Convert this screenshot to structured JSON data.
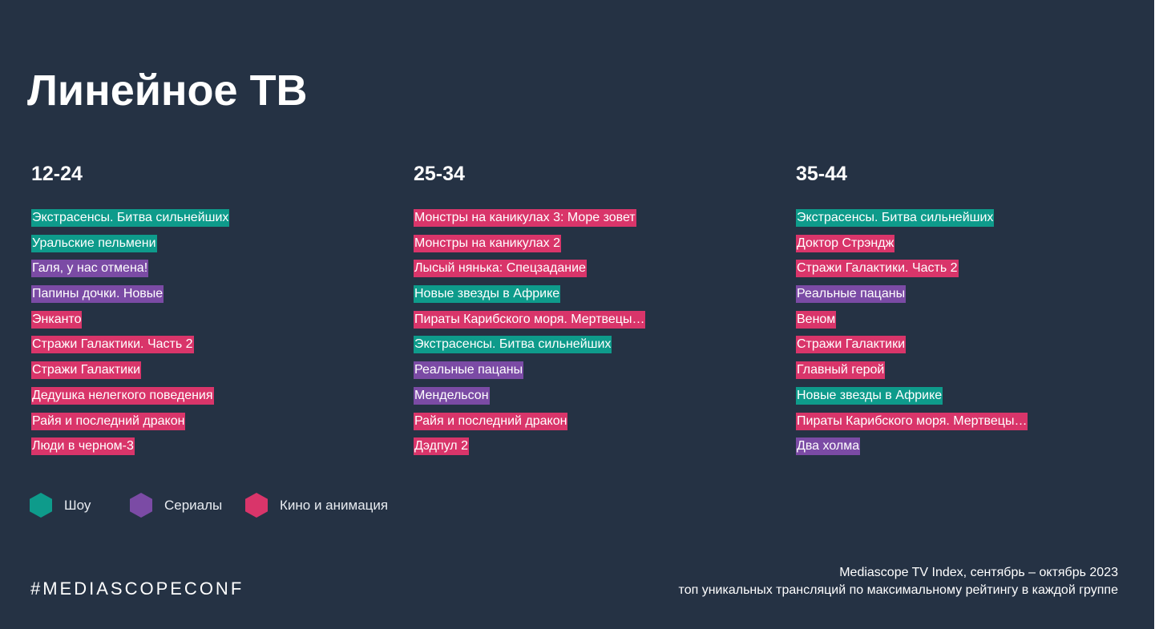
{
  "title": "Линейное ТВ",
  "colors": {
    "background": "#253244",
    "show": "#0e9b8b",
    "series": "#7b4ba5",
    "movie": "#d9356a"
  },
  "legend": [
    {
      "category": "show",
      "label": "Шоу",
      "icon": "teal-hexagon-icon"
    },
    {
      "category": "series",
      "label": "Сериалы",
      "icon": "purple-hexagon-icon"
    },
    {
      "category": "movie",
      "label": "Кино и анимация",
      "icon": "pink-hexagon-icon"
    }
  ],
  "groups": [
    {
      "age": "12-24",
      "items": [
        {
          "title": "Экстрасенсы. Битва сильнейших",
          "category": "show"
        },
        {
          "title": "Уральские пельмени",
          "category": "show"
        },
        {
          "title": "Галя, у нас отмена!",
          "category": "series"
        },
        {
          "title": "Папины дочки. Новые",
          "category": "series"
        },
        {
          "title": "Энканто",
          "category": "movie"
        },
        {
          "title": "Стражи Галактики. Часть 2",
          "category": "movie"
        },
        {
          "title": "Стражи Галактики",
          "category": "movie"
        },
        {
          "title": "Дедушка нелегкого поведения",
          "category": "movie"
        },
        {
          "title": "Райя и последний дракон",
          "category": "movie"
        },
        {
          "title": "Люди в черном-3",
          "category": "movie"
        }
      ]
    },
    {
      "age": "25-34",
      "items": [
        {
          "title": "Монстры на каникулах 3: Море зовет",
          "category": "movie"
        },
        {
          "title": "Монстры на каникулах 2",
          "category": "movie"
        },
        {
          "title": "Лысый нянька: Спецзадание",
          "category": "movie"
        },
        {
          "title": "Новые звезды в Африке",
          "category": "show"
        },
        {
          "title": "Пираты Карибского моря. Мертвецы…",
          "category": "movie"
        },
        {
          "title": "Экстрасенсы. Битва сильнейших",
          "category": "show"
        },
        {
          "title": "Реальные пацаны",
          "category": "series"
        },
        {
          "title": "Мендельсон",
          "category": "series"
        },
        {
          "title": "Райя и последний дракон",
          "category": "movie"
        },
        {
          "title": "Дэдпул 2",
          "category": "movie"
        }
      ]
    },
    {
      "age": "35-44",
      "items": [
        {
          "title": "Экстрасенсы. Битва сильнейших",
          "category": "show"
        },
        {
          "title": "Доктор Стрэндж",
          "category": "movie"
        },
        {
          "title": "Стражи Галактики. Часть 2",
          "category": "movie"
        },
        {
          "title": "Реальные пацаны",
          "category": "series"
        },
        {
          "title": "Веном",
          "category": "movie"
        },
        {
          "title": "Стражи Галактики",
          "category": "movie"
        },
        {
          "title": "Главный герой",
          "category": "movie"
        },
        {
          "title": "Новые звезды в Африке",
          "category": "show"
        },
        {
          "title": "Пираты Карибского моря. Мертвецы…",
          "category": "movie"
        },
        {
          "title": "Два холма",
          "category": "series"
        }
      ]
    }
  ],
  "footer": {
    "hashtag": "#MEDIASCOPECONF",
    "source_line1": "Mediascope TV Index, сентябрь – октябрь 2023",
    "source_line2": "топ уникальных трансляций по максимальному рейтингу в каждой группе"
  }
}
